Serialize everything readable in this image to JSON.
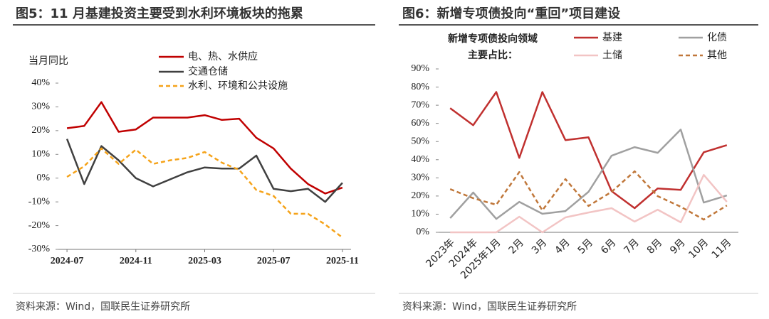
{
  "chart_data": [
    {
      "type": "line",
      "title": "图5：11 月基建投资主要受到水利环境板块的拖累",
      "ylabel": "当月同比",
      "source": "资料来源：Wind，国联民生证券研究所",
      "legend": "top",
      "categories": [
        "2024-07",
        null,
        null,
        null,
        "2024-11",
        null,
        null,
        null,
        "2025-03",
        null,
        null,
        null,
        "2025-07",
        null,
        null,
        null,
        "2025-11"
      ],
      "ylim": [
        -30,
        40
      ],
      "yticks": [
        {
          "value": -30,
          "label": "-30%"
        },
        {
          "value": -20,
          "label": "-20%"
        },
        {
          "value": -10,
          "label": "-10%"
        },
        {
          "value": 0,
          "label": "0%"
        },
        {
          "value": 10,
          "label": "10%"
        },
        {
          "value": 20,
          "label": "20%"
        },
        {
          "value": 30,
          "label": "30%"
        },
        {
          "value": 40,
          "label": "40%"
        }
      ],
      "series": [
        {
          "name": "电、热、水供应",
          "color": "#c00000",
          "dash": false,
          "values": [
            21,
            22,
            32,
            19.5,
            20.5,
            25.5,
            25.5,
            25.5,
            26.5,
            24.5,
            25,
            17,
            12.5,
            4,
            -2.5,
            -6.5,
            -4
          ]
        },
        {
          "name": "交通仓储",
          "color": "#404040",
          "dash": false,
          "values": [
            16.5,
            -2.5,
            13.5,
            7.5,
            0,
            -3.5,
            -0.5,
            2.5,
            4.5,
            4,
            4,
            9.5,
            -4.5,
            -5.5,
            -4.5,
            -10,
            -2
          ]
        },
        {
          "name": "水利、环境和公共设施",
          "color": "#f5a31a",
          "dash": true,
          "values": [
            0.5,
            5,
            12.5,
            6,
            12,
            6,
            7.5,
            8.5,
            11,
            6.5,
            3.5,
            -5,
            -7.5,
            -15,
            -15,
            -19.5,
            -25
          ]
        }
      ]
    },
    {
      "type": "line",
      "title": "图6：新增专项债投向“重回”项目建设",
      "annotation_lines": [
        "新增专项债投向领域",
        "主要占比："
      ],
      "source": "资料来源：Wind，国联民生证券研究所",
      "legend": "top",
      "categories": [
        "2023年",
        "2024年",
        "2025年1月",
        "2月",
        "3月",
        "4月",
        "5月",
        "6月",
        "7月",
        "8月",
        "9月",
        "10月",
        "11月"
      ],
      "ylim": [
        0,
        90
      ],
      "yticks": [
        {
          "value": 0,
          "label": "0%"
        },
        {
          "value": 10,
          "label": "10%"
        },
        {
          "value": 20,
          "label": "20%"
        },
        {
          "value": 30,
          "label": "30%"
        },
        {
          "value": 40,
          "label": "40%"
        },
        {
          "value": 50,
          "label": "50%"
        },
        {
          "value": 60,
          "label": "60%"
        },
        {
          "value": 70,
          "label": "70%"
        },
        {
          "value": 80,
          "label": "80%"
        },
        {
          "value": 90,
          "label": "90%"
        }
      ],
      "series": [
        {
          "name": "基建",
          "color": "#c0302f",
          "dash": false,
          "values": [
            68.4,
            59,
            77.3,
            41,
            77.3,
            50.8,
            52.3,
            22.7,
            13.3,
            24.2,
            23.4,
            44.1,
            48
          ]
        },
        {
          "name": "化债",
          "color": "#a0a0a0",
          "dash": false,
          "values": [
            7.8,
            21.9,
            7.4,
            16.8,
            10.2,
            11.7,
            22.3,
            42.2,
            46.9,
            43.8,
            56.6,
            16.4,
            20.3
          ]
        },
        {
          "name": "土储",
          "color": "#f2c4c4",
          "dash": false,
          "values": [
            0,
            0,
            0,
            8.6,
            0,
            8.2,
            10.9,
            13.3,
            5.9,
            12.5,
            5.5,
            31.6,
            16.8
          ]
        },
        {
          "name": "其他",
          "color": "#c0773a",
          "dash": true,
          "values": [
            23.8,
            18.8,
            15.2,
            33.2,
            12.1,
            29.3,
            14.5,
            22.3,
            33.6,
            19.9,
            14.1,
            7,
            14.8
          ]
        }
      ]
    }
  ]
}
